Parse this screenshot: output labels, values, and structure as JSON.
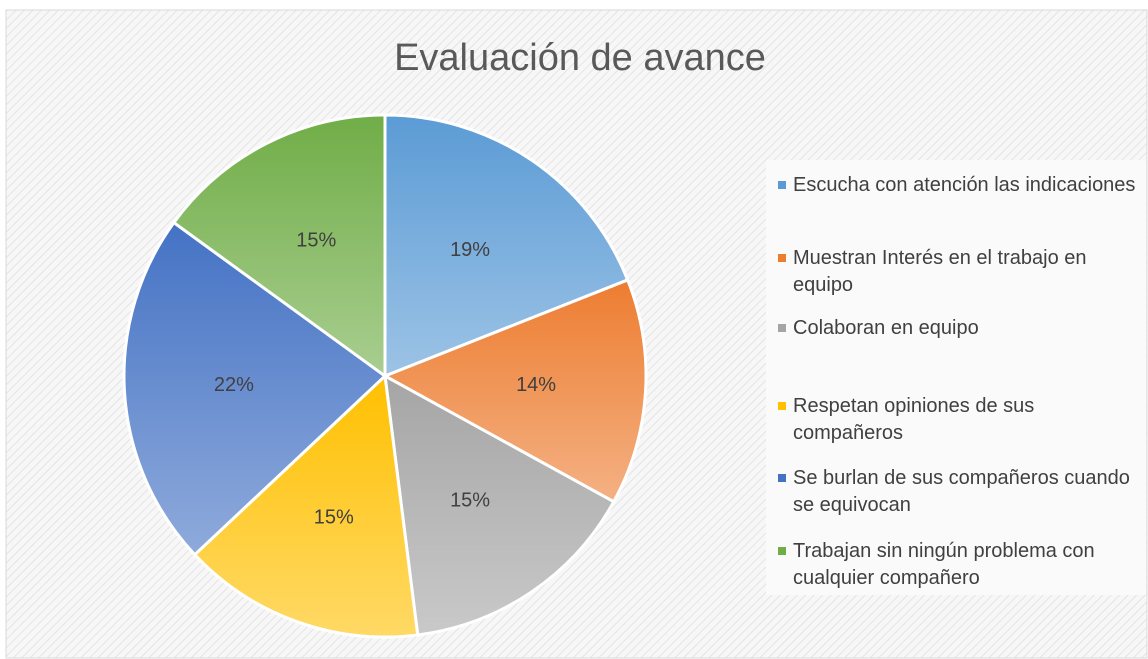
{
  "chart_data": {
    "type": "pie",
    "title": "Evaluación de avance",
    "categories": [
      "Escucha con atención las indicaciones",
      "Muestran Interés en el trabajo en equipo",
      "Colaboran en equipo",
      "Respetan opiniones de sus compañeros",
      "Se burlan de sus compañeros cuando se equivocan",
      "Trabajan sin ningún problema con cualquier compañero"
    ],
    "values": [
      19,
      14,
      15,
      15,
      22,
      15
    ],
    "value_labels": [
      "19%",
      "14%",
      "15%",
      "15%",
      "22%",
      "15%"
    ],
    "colors": [
      "#5b9bd5",
      "#ed7d31",
      "#a5a5a5",
      "#ffc000",
      "#4472c4",
      "#70ad47"
    ],
    "legend": "right"
  }
}
